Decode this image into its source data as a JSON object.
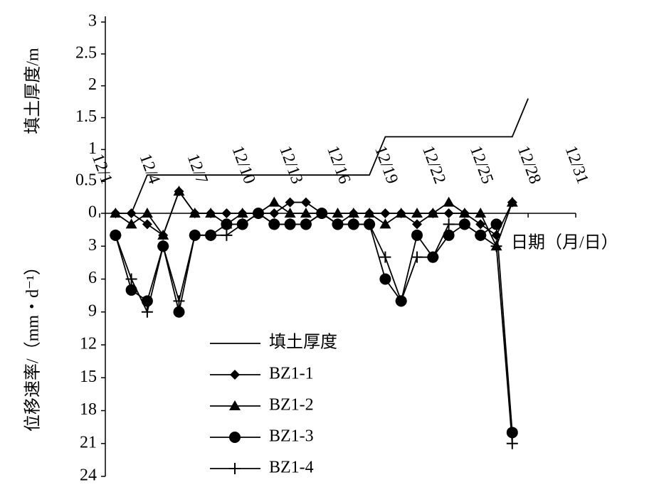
{
  "chart_data": {
    "type": "line",
    "ylabel": "填土厚度/m",
    "y2label": "位移速率/（mm・d⁻¹）",
    "xlabel": "日期（月/日）",
    "xlim": [
      1,
      31
    ],
    "xticks": [
      {
        "value": 1,
        "label": "12/1"
      },
      {
        "value": 4,
        "label": "12/4"
      },
      {
        "value": 7,
        "label": "12/7"
      },
      {
        "value": 10,
        "label": "12/10"
      },
      {
        "value": 13,
        "label": "12/13"
      },
      {
        "value": 16,
        "label": "12/16"
      },
      {
        "value": 19,
        "label": "12/19"
      },
      {
        "value": 22,
        "label": "12/22"
      },
      {
        "value": 25,
        "label": "12/25"
      },
      {
        "value": 28,
        "label": "12/28"
      },
      {
        "value": 31,
        "label": "12/31"
      }
    ],
    "ylim": [
      0,
      3
    ],
    "yticks": [
      0,
      0.5,
      1,
      1.5,
      2,
      2.5,
      3
    ],
    "y2lim": [
      0,
      24
    ],
    "y2ticks": [
      3,
      6,
      9,
      12,
      15,
      18,
      21,
      24
    ],
    "y2_inverted": true,
    "x": [
      2,
      3,
      4,
      5,
      6,
      7,
      8,
      9,
      10,
      11,
      12,
      13,
      14,
      15,
      16,
      17,
      18,
      19,
      20,
      21,
      22,
      23,
      24,
      25,
      26,
      27
    ],
    "series": [
      {
        "name": "填土厚度",
        "color": "#000000",
        "marker": "none",
        "x": [
          3,
          4,
          18,
          19,
          27,
          28
        ],
        "values": [
          0,
          0.6,
          0.6,
          1.2,
          1.2,
          1.8
        ]
      },
      {
        "name": "BZ1-1",
        "color": "#000000",
        "marker": "diamond",
        "axis": "y2",
        "values": [
          0,
          0,
          1,
          2,
          -2,
          0,
          0,
          0,
          0,
          0,
          0,
          -1,
          -1,
          0,
          1,
          0,
          0,
          0,
          0,
          1,
          0,
          0,
          0,
          1,
          2,
          -1
        ]
      },
      {
        "name": "BZ1-2",
        "color": "#000000",
        "marker": "triangle",
        "axis": "y2",
        "values": [
          0,
          1,
          0,
          2,
          -2,
          0,
          0,
          1,
          0,
          0,
          -1,
          0,
          0,
          0,
          0,
          0,
          0,
          1,
          0,
          0,
          0,
          -1,
          0,
          0,
          3,
          -1
        ]
      },
      {
        "name": "BZ1-3",
        "color": "#000000",
        "marker": "circle",
        "axis": "y2",
        "values": [
          2,
          7,
          8,
          3,
          9,
          2,
          2,
          1,
          1,
          0,
          1,
          1,
          1,
          0,
          1,
          1,
          1,
          6,
          8,
          2,
          4,
          2,
          1,
          2,
          1,
          20
        ]
      },
      {
        "name": "BZ1-4",
        "color": "#000000",
        "marker": "plus",
        "axis": "y2",
        "values": [
          2,
          6,
          9,
          3,
          8,
          2,
          2,
          2,
          1,
          0,
          1,
          1,
          1,
          0,
          1,
          1,
          1,
          4,
          8,
          4,
          4,
          1,
          1,
          2,
          3,
          21
        ]
      }
    ]
  }
}
